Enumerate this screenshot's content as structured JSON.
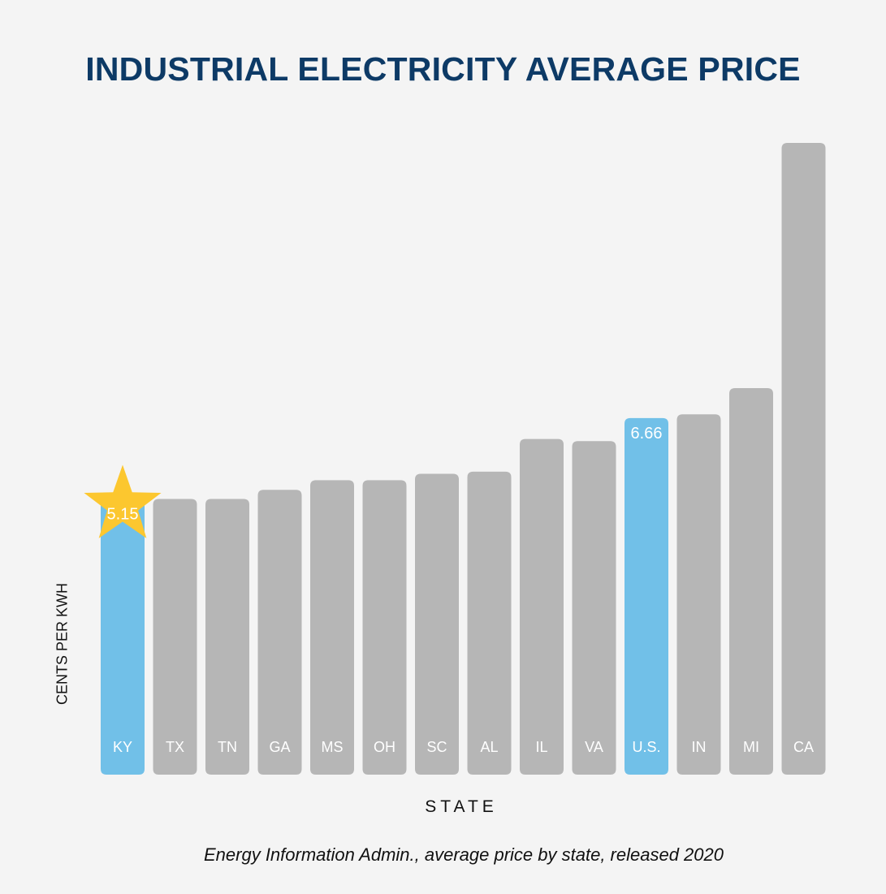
{
  "chart_data": {
    "type": "bar",
    "title": "INDUSTRIAL ELECTRICITY AVERAGE PRICE",
    "xlabel": "STATE",
    "ylabel": "CENTS PER KWH",
    "source_note": "Energy Information Admin., average price by state, released 2020",
    "categories": [
      "KY",
      "TX",
      "TN",
      "GA",
      "MS",
      "OH",
      "SC",
      "AL",
      "IL",
      "VA",
      "U.S.",
      "IN",
      "MI",
      "CA"
    ],
    "values": [
      5.15,
      5.15,
      5.15,
      5.32,
      5.5,
      5.5,
      5.62,
      5.66,
      6.27,
      6.23,
      6.66,
      6.73,
      7.22,
      11.8
    ],
    "data_labels": [
      {
        "category": "KY",
        "text": "5.15"
      },
      {
        "category": "U.S.",
        "text": "6.66"
      }
    ],
    "highlighted": [
      "KY",
      "U.S."
    ],
    "star_marker": "KY",
    "ylim": [
      0,
      11.8
    ],
    "grid": false,
    "legend": "none",
    "colors": {
      "highlight": "#71c0e8",
      "default": "#b6b6b6",
      "star": "#fcc72f",
      "title": "#0d3a66",
      "bar_label": "#ffffff"
    }
  }
}
